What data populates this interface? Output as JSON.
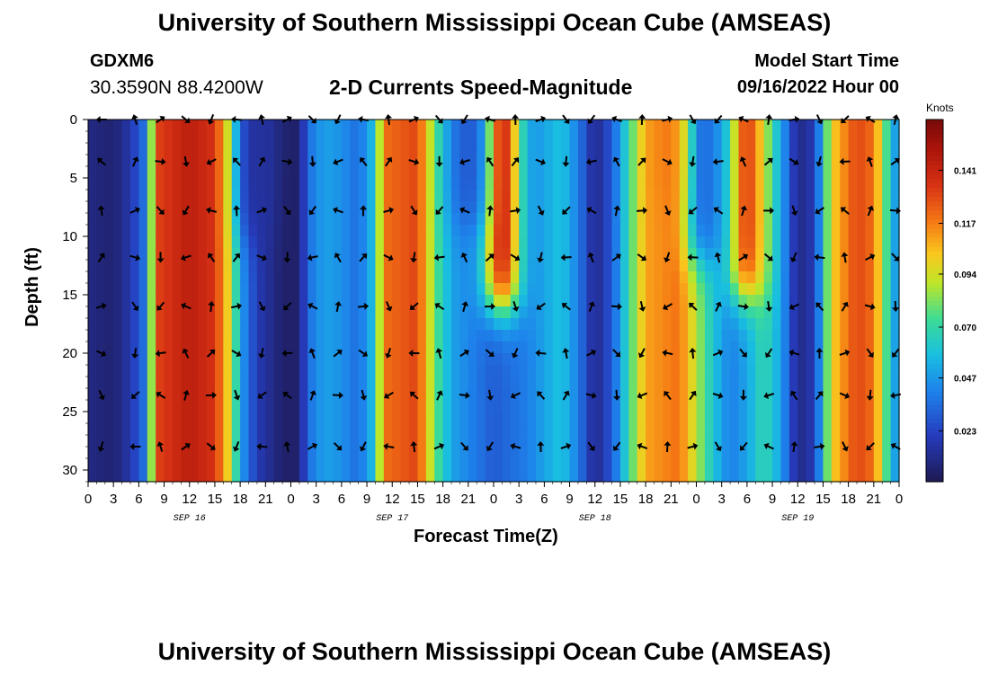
{
  "header": {
    "title": "University of Southern Mississippi Ocean Cube (AMSEAS)",
    "station": "GDXM6",
    "coords": "30.3590N  88.4200W",
    "subtitle": "2-D Currents Speed-Magnitude",
    "model_start_label": "Model Start Time",
    "model_start_value": "09/16/2022 Hour 00"
  },
  "footer": {
    "title": "University of Southern Mississippi Ocean Cube (AMSEAS)"
  },
  "chart_data": {
    "type": "heatmap",
    "title": "2-D Currents Speed-Magnitude",
    "xlabel": "Forecast Time(Z)",
    "ylabel": "Depth (ft)",
    "xlim": [
      0,
      96
    ],
    "ylim": [
      0,
      31
    ],
    "x_tick_labels": [
      "0",
      "3",
      "6",
      "9",
      "12",
      "15",
      "18",
      "21",
      "0",
      "3",
      "6",
      "9",
      "12",
      "15",
      "18",
      "21",
      "0",
      "3",
      "6",
      "9",
      "12",
      "15",
      "18",
      "21",
      "0",
      "3",
      "6",
      "9",
      "12",
      "15",
      "18",
      "21",
      "0"
    ],
    "y_ticks": [
      0,
      5,
      10,
      15,
      20,
      25,
      30
    ],
    "date_labels": [
      {
        "label": "SEP 16",
        "hour": 12
      },
      {
        "label": "SEP 17",
        "hour": 36
      },
      {
        "label": "SEP 18",
        "hour": 60
      },
      {
        "label": "SEP 19",
        "hour": 84
      }
    ],
    "colorbar": {
      "label": "Knots",
      "range": [
        0.0,
        0.164
      ],
      "ticks": [
        "0.023",
        "0.047",
        "0.070",
        "0.094",
        "0.117",
        "0.141"
      ]
    },
    "time_profile": [
      [
        0,
        0.01
      ],
      [
        3,
        0.006
      ],
      [
        5,
        0.018
      ],
      [
        7,
        0.04
      ],
      [
        8,
        0.13
      ],
      [
        12,
        0.145
      ],
      [
        15,
        0.135
      ],
      [
        17,
        0.09
      ],
      [
        18,
        0.05
      ],
      [
        20,
        0.02
      ],
      [
        23,
        0.005
      ],
      [
        25,
        0.005
      ],
      [
        26,
        0.035
      ],
      [
        28,
        0.05
      ],
      [
        30,
        0.045
      ],
      [
        32,
        0.035
      ],
      [
        34,
        0.06
      ],
      [
        35,
        0.12
      ],
      [
        39,
        0.13
      ],
      [
        41,
        0.08
      ],
      [
        43,
        0.05
      ],
      [
        48,
        0.03
      ],
      [
        52,
        0.04
      ],
      [
        56,
        0.06
      ],
      [
        58,
        0.04
      ],
      [
        60,
        0.01
      ],
      [
        62,
        0.03
      ],
      [
        64,
        0.07
      ],
      [
        66,
        0.11
      ],
      [
        70,
        0.12
      ],
      [
        72,
        0.09
      ],
      [
        74,
        0.06
      ],
      [
        76,
        0.04
      ],
      [
        78,
        0.05
      ],
      [
        80,
        0.07
      ],
      [
        82,
        0.05
      ],
      [
        84,
        0.01
      ],
      [
        86,
        0.02
      ],
      [
        88,
        0.1
      ],
      [
        91,
        0.13
      ],
      [
        93,
        0.12
      ],
      [
        95,
        0.06
      ],
      [
        96,
        0.04
      ]
    ],
    "surface_features": [
      {
        "hour_center": 49,
        "depth_extent_ft": 16,
        "speed_knots": 0.14
      },
      {
        "hour_center": 78,
        "depth_extent_ft": 15,
        "speed_knots": 0.13
      },
      {
        "hour_center": 70,
        "depth_extent_ft": 7,
        "speed_knots": 0.12
      },
      {
        "hour_center": 20,
        "depth_extent_ft": 10,
        "speed_knots": 0.015
      },
      {
        "hour_center": 45,
        "depth_extent_ft": 9,
        "speed_knots": 0.03
      },
      {
        "hour_center": 73,
        "depth_extent_ft": 12,
        "speed_knots": 0.035
      }
    ],
    "vector_hours": [
      2,
      6,
      9,
      12,
      15,
      18,
      21,
      24,
      27,
      30,
      33,
      36,
      39,
      42,
      45,
      48,
      51,
      54,
      57,
      60,
      63,
      66,
      69,
      72,
      75,
      78,
      81,
      84,
      87,
      90,
      93,
      96
    ],
    "vector_depths_ft": [
      0,
      3.6,
      7.8,
      11.8,
      16,
      20,
      23.6,
      28
    ]
  }
}
